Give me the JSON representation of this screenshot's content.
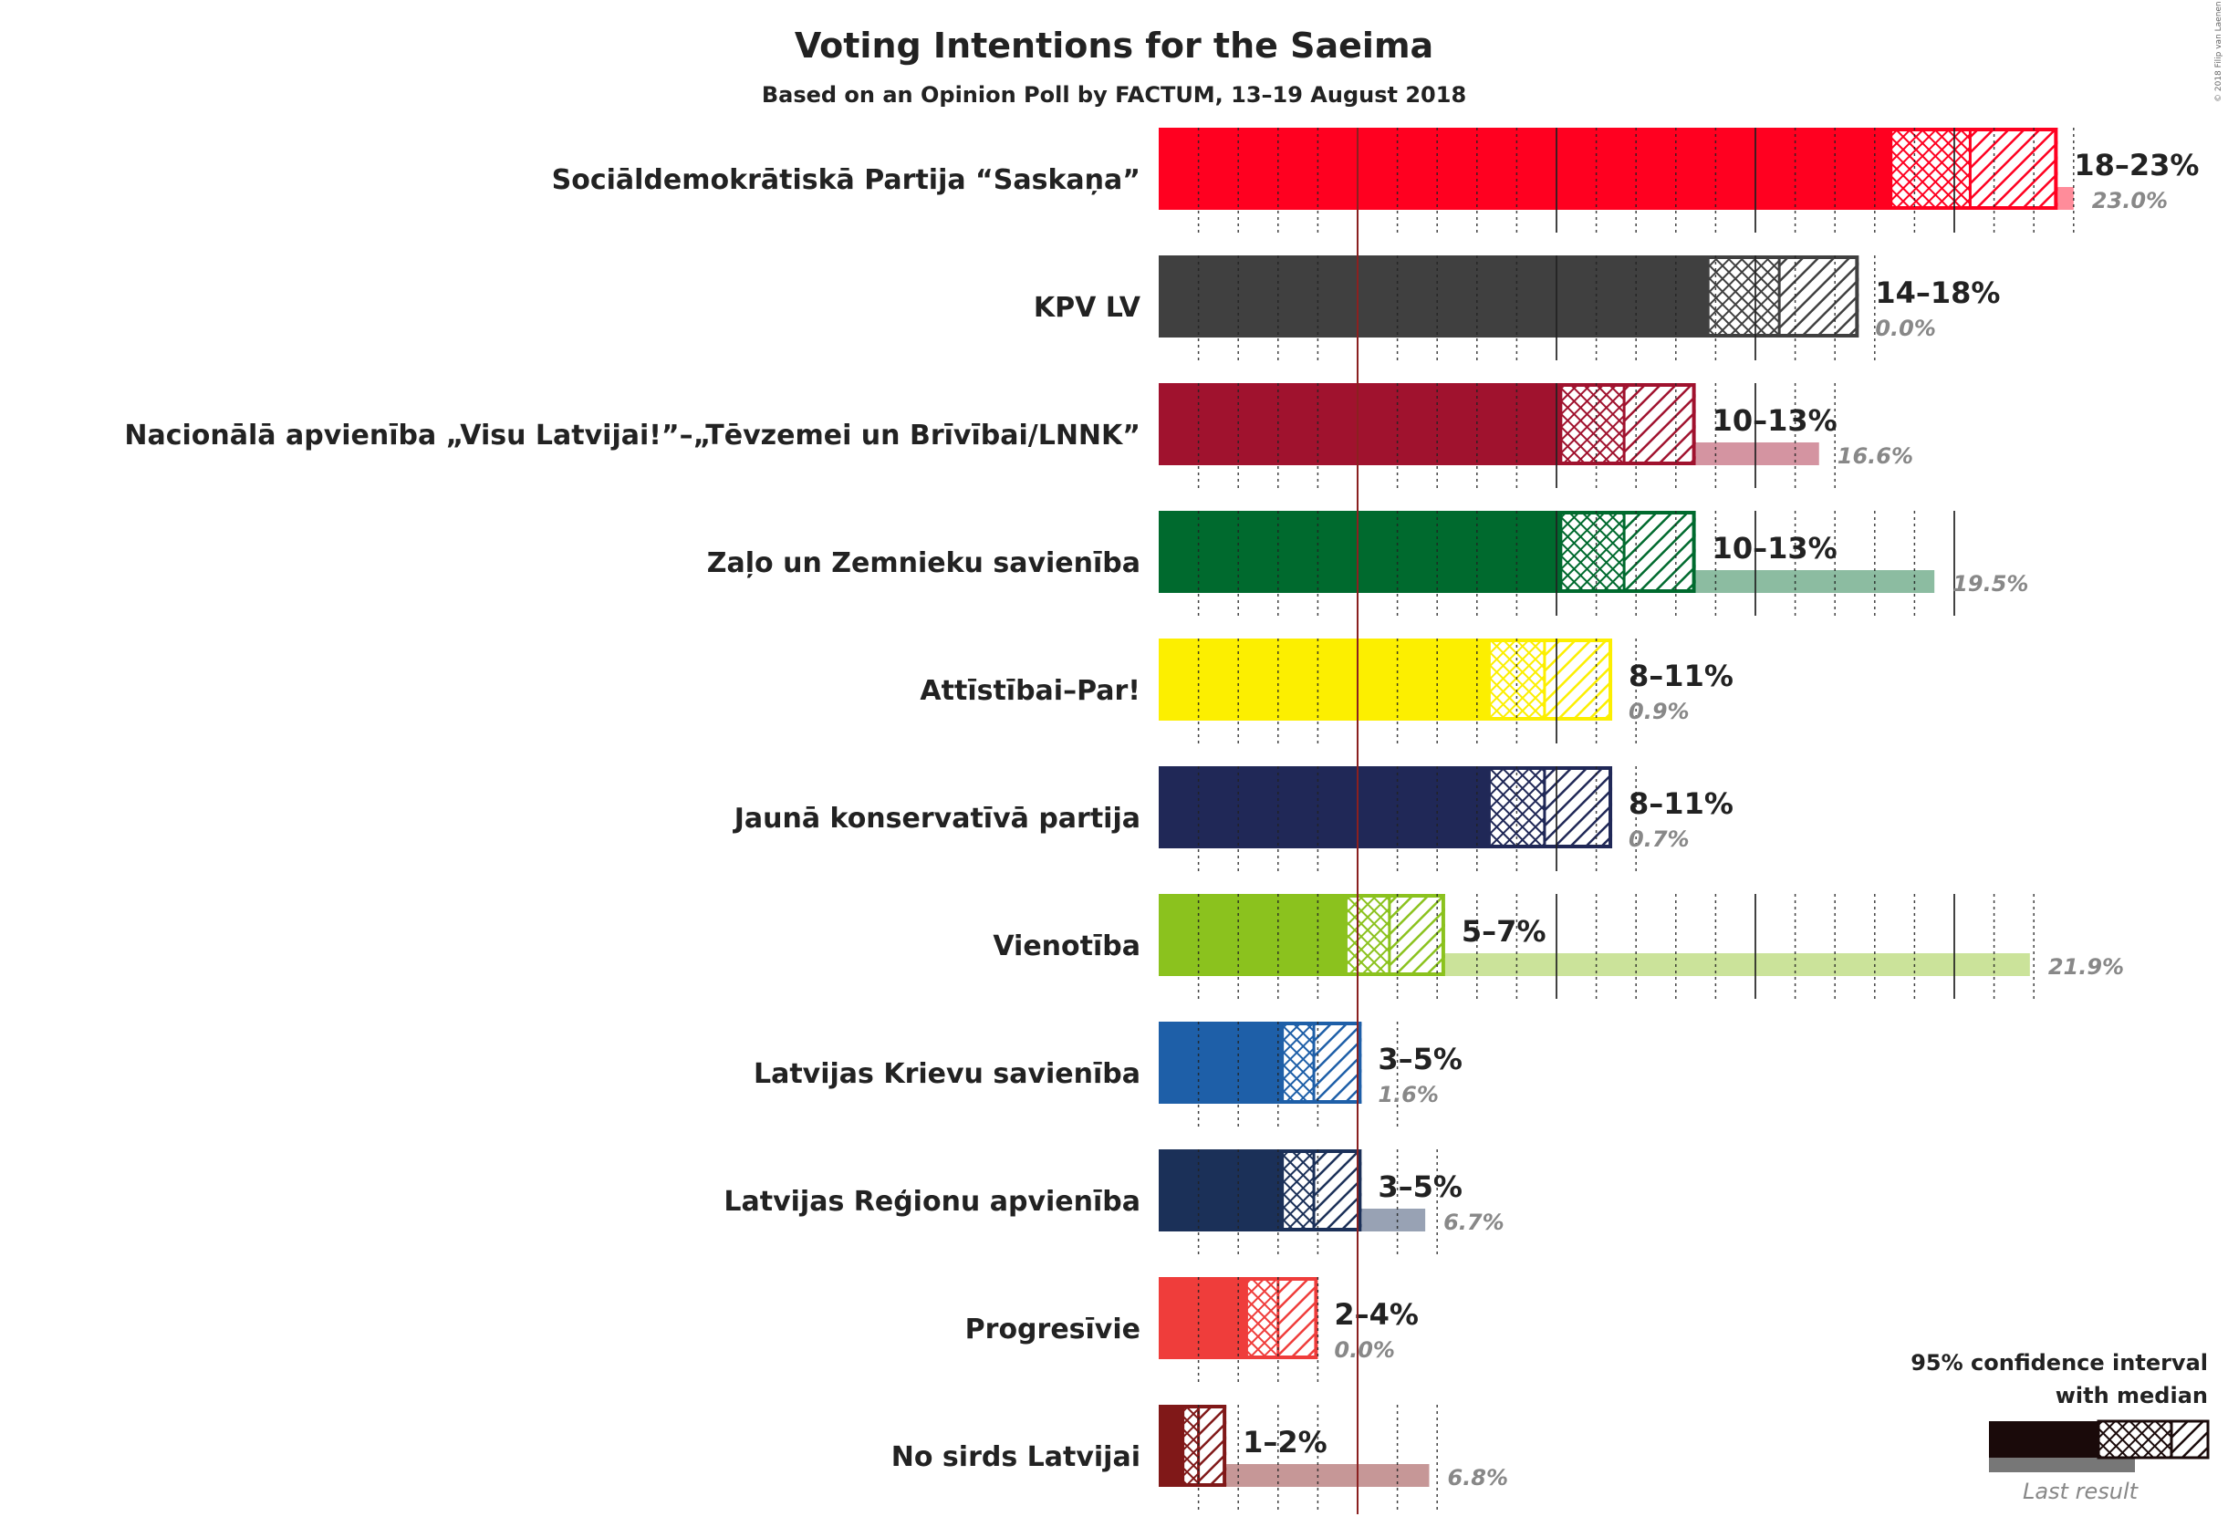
{
  "chart_data": {
    "type": "bar",
    "title": "Voting Intentions for the Saeima",
    "subtitle": "Based on an Opinion Poll by FACTUM, 13–19 August 2018",
    "copyright": "© 2018 Filip van Laenen",
    "threshold": 5,
    "xlim": [
      0,
      24
    ],
    "series": [
      {
        "name": "Sociāldemokrātiskā Partija “Saskaņa”",
        "color": "#ff0020",
        "ci_low": 18.4,
        "median": 20.4,
        "ci_high": 22.6,
        "range_label": "18–23%",
        "last": 23.0,
        "last_label": "23.0%"
      },
      {
        "name": "KPV LV",
        "color": "#404040",
        "ci_low": 13.8,
        "median": 15.6,
        "ci_high": 17.6,
        "range_label": "14–18%",
        "last": 0.0,
        "last_label": "0.0%"
      },
      {
        "name": "Nacionālā apvienība „Visu Latvijai!”–„Tēvzemei un Brīvībai/LNNK”",
        "color": "#a0122e",
        "ci_low": 10.1,
        "median": 11.7,
        "ci_high": 13.5,
        "range_label": "10–13%",
        "last": 16.6,
        "last_label": "16.6%"
      },
      {
        "name": "Zaļo un Zemnieku savienība",
        "color": "#006a2e",
        "ci_low": 10.1,
        "median": 11.7,
        "ci_high": 13.5,
        "range_label": "10–13%",
        "last": 19.5,
        "last_label": "19.5%"
      },
      {
        "name": "Attīstībai–Par!",
        "color": "#fcef00",
        "ci_low": 8.3,
        "median": 9.7,
        "ci_high": 11.4,
        "range_label": "8–11%",
        "last": 0.9,
        "last_label": "0.9%"
      },
      {
        "name": "Jaunā konservatīvā partija",
        "color": "#202857",
        "ci_low": 8.3,
        "median": 9.7,
        "ci_high": 11.4,
        "range_label": "8–11%",
        "last": 0.7,
        "last_label": "0.7%"
      },
      {
        "name": "Vienotība",
        "color": "#8bc21e",
        "ci_low": 4.7,
        "median": 5.8,
        "ci_high": 7.2,
        "range_label": "5–7%",
        "last": 21.9,
        "last_label": "21.9%"
      },
      {
        "name": "Latvijas Krievu savienība",
        "color": "#1e5fa8",
        "ci_low": 3.1,
        "median": 3.9,
        "ci_high": 5.1,
        "range_label": "3–5%",
        "last": 1.6,
        "last_label": "1.6%"
      },
      {
        "name": "Latvijas Reģionu apvienība",
        "color": "#1b3058",
        "ci_low": 3.1,
        "median": 3.9,
        "ci_high": 5.1,
        "range_label": "3–5%",
        "last": 6.7,
        "last_label": "6.7%"
      },
      {
        "name": "Progresīvie",
        "color": "#ef3d3b",
        "ci_low": 2.2,
        "median": 3.0,
        "ci_high": 4.0,
        "range_label": "2–4%",
        "last": 0.0,
        "last_label": "0.0%"
      },
      {
        "name": "No sirds Latvijai",
        "color": "#801818",
        "ci_low": 0.6,
        "median": 1.0,
        "ci_high": 1.7,
        "range_label": "1–2%",
        "last": 6.8,
        "last_label": "6.8%"
      }
    ]
  },
  "legend": {
    "title_line1": "95% confidence interval",
    "title_line2": "with median",
    "last_result": "Last result",
    "color": "#1a0a0a"
  }
}
